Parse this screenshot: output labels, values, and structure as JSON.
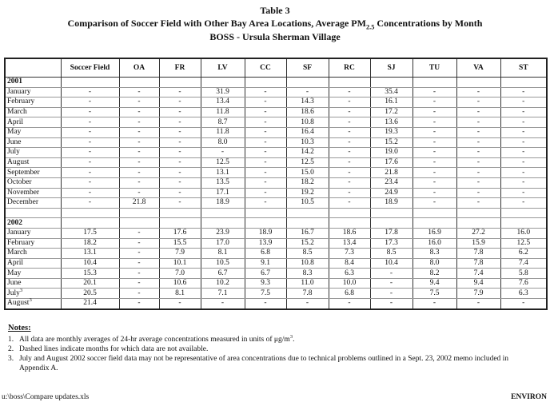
{
  "header": {
    "label": "Table 3",
    "title_pre": "Comparison of Soccer Field with Other Bay Area Locations, Average PM",
    "title_sub": "2.5",
    "title_post": " Concentrations by Month",
    "subtitle": "BOSS - Ursula Sherman Village"
  },
  "table": {
    "columns": [
      "Soccer Field",
      "OA",
      "FR",
      "LV",
      "CC",
      "SF",
      "RC",
      "SJ",
      "TU",
      "VA",
      "ST"
    ],
    "sections": [
      {
        "year": "2001",
        "rows": [
          {
            "label": "January",
            "cells": [
              "-",
              "-",
              "-",
              "31.9",
              "-",
              "-",
              "-",
              "35.4",
              "-",
              "-",
              "-"
            ]
          },
          {
            "label": "February",
            "cells": [
              "-",
              "-",
              "-",
              "13.4",
              "-",
              "14.3",
              "-",
              "16.1",
              "-",
              "-",
              "-"
            ]
          },
          {
            "label": "March",
            "cells": [
              "-",
              "-",
              "-",
              "11.8",
              "-",
              "18.6",
              "-",
              "17.2",
              "-",
              "-",
              "-"
            ]
          },
          {
            "label": "April",
            "cells": [
              "-",
              "-",
              "-",
              "8.7",
              "-",
              "10.8",
              "-",
              "13.6",
              "-",
              "-",
              "-"
            ]
          },
          {
            "label": "May",
            "cells": [
              "-",
              "-",
              "-",
              "11.8",
              "-",
              "16.4",
              "-",
              "19.3",
              "-",
              "-",
              "-"
            ]
          },
          {
            "label": "June",
            "cells": [
              "-",
              "-",
              "-",
              "8.0",
              "-",
              "10.3",
              "-",
              "15.2",
              "-",
              "-",
              "-"
            ]
          },
          {
            "label": "July",
            "cells": [
              "-",
              "-",
              "-",
              "-",
              "-",
              "14.2",
              "-",
              "19.0",
              "-",
              "-",
              "-"
            ]
          },
          {
            "label": "August",
            "cells": [
              "-",
              "-",
              "-",
              "12.5",
              "-",
              "12.5",
              "-",
              "17.6",
              "-",
              "-",
              "-"
            ]
          },
          {
            "label": "September",
            "cells": [
              "-",
              "-",
              "-",
              "13.1",
              "-",
              "15.0",
              "-",
              "21.8",
              "-",
              "-",
              "-"
            ]
          },
          {
            "label": "October",
            "cells": [
              "-",
              "-",
              "-",
              "13.5",
              "-",
              "18.2",
              "-",
              "23.4",
              "-",
              "-",
              "-"
            ]
          },
          {
            "label": "November",
            "cells": [
              "-",
              "-",
              "-",
              "17.1",
              "-",
              "19.2",
              "-",
              "24.9",
              "-",
              "-",
              "-"
            ]
          },
          {
            "label": "December",
            "cells": [
              "-",
              "21.8",
              "-",
              "18.9",
              "-",
              "10.5",
              "-",
              "18.9",
              "-",
              "-",
              "-"
            ]
          }
        ]
      },
      {
        "year": "2002",
        "rows": [
          {
            "label": "January",
            "cells": [
              "17.5",
              "-",
              "17.6",
              "23.9",
              "18.9",
              "16.7",
              "18.6",
              "17.8",
              "16.9",
              "27.2",
              "16.0"
            ]
          },
          {
            "label": "February",
            "cells": [
              "18.2",
              "-",
              "15.5",
              "17.0",
              "13.9",
              "15.2",
              "13.4",
              "17.3",
              "16.0",
              "15.9",
              "12.5"
            ]
          },
          {
            "label": "March",
            "cells": [
              "13.1",
              "-",
              "7.9",
              "8.1",
              "6.8",
              "8.5",
              "7.3",
              "8.5",
              "8.3",
              "7.8",
              "6.2"
            ]
          },
          {
            "label": "April",
            "cells": [
              "10.4",
              "-",
              "10.1",
              "10.5",
              "9.1",
              "10.8",
              "8.4",
              "10.4",
              "8.0",
              "7.8",
              "7.4"
            ]
          },
          {
            "label": "May",
            "cells": [
              "15.3",
              "-",
              "7.0",
              "6.7",
              "6.7",
              "8.3",
              "6.3",
              "-",
              "8.2",
              "7.4",
              "5.8"
            ]
          },
          {
            "label": "June",
            "cells": [
              "20.1",
              "-",
              "10.6",
              "10.2",
              "9.3",
              "11.0",
              "10.0",
              "-",
              "9.4",
              "9.4",
              "7.6"
            ]
          },
          {
            "label": "July",
            "sup": "3",
            "cells": [
              "20.5",
              "-",
              "8.1",
              "7.1",
              "7.5",
              "7.8",
              "6.8",
              "-",
              "7.5",
              "7.9",
              "6.3"
            ]
          },
          {
            "label": "August",
            "sup": "3",
            "cells": [
              "21.4",
              "-",
              "-",
              "-",
              "-",
              "-",
              "-",
              "-",
              "-",
              "-",
              "-"
            ]
          }
        ]
      }
    ]
  },
  "notes": {
    "heading": "Notes:",
    "items": [
      {
        "number": "1.",
        "text": "All data are monthly averages of 24-hr average concentrations measured in units of μg/m",
        "sup": "3",
        "end": "."
      },
      {
        "number": "2.",
        "text": "Dashed lines indicate months for which data are not available."
      },
      {
        "number": "3.",
        "text": "July and August 2002 soccer field data may not be representative of area concentrations due to technical problems outlined in a Sept. 23, 2002 memo included in Appendix A."
      }
    ]
  },
  "footer": {
    "file": "u:\\boss\\Compare updates.xls",
    "company": "ENVIRON"
  }
}
